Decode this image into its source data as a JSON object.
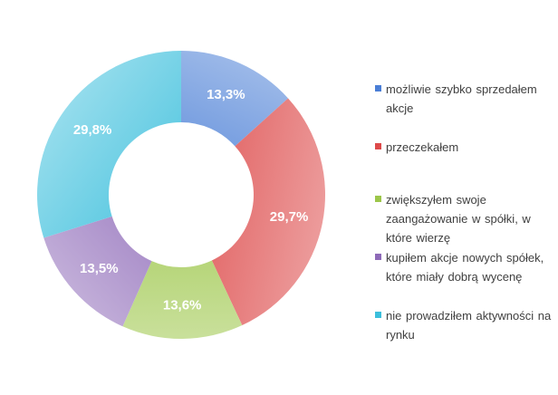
{
  "chart_data": {
    "type": "pie",
    "donut": true,
    "title": "",
    "categories": [
      "możliwie szybko sprzedałem akcje",
      "przeczekałem",
      "zwiększyłem swoje zaangażowanie w spółki, w które wierzę",
      "kupiłem akcje nowych spółek, które miały dobrą wycenę",
      "nie prowadziłem aktywności na rynku"
    ],
    "values": [
      13.3,
      29.7,
      13.6,
      13.5,
      29.8
    ],
    "data_labels": [
      "13,3%",
      "29,7%",
      "13,6%",
      "13,5%",
      "29,8%"
    ],
    "colors": [
      "#4a7ed6",
      "#dd4a4a",
      "#9cc64a",
      "#8e6ab8",
      "#3cbfdc"
    ],
    "legend_position": "right"
  }
}
